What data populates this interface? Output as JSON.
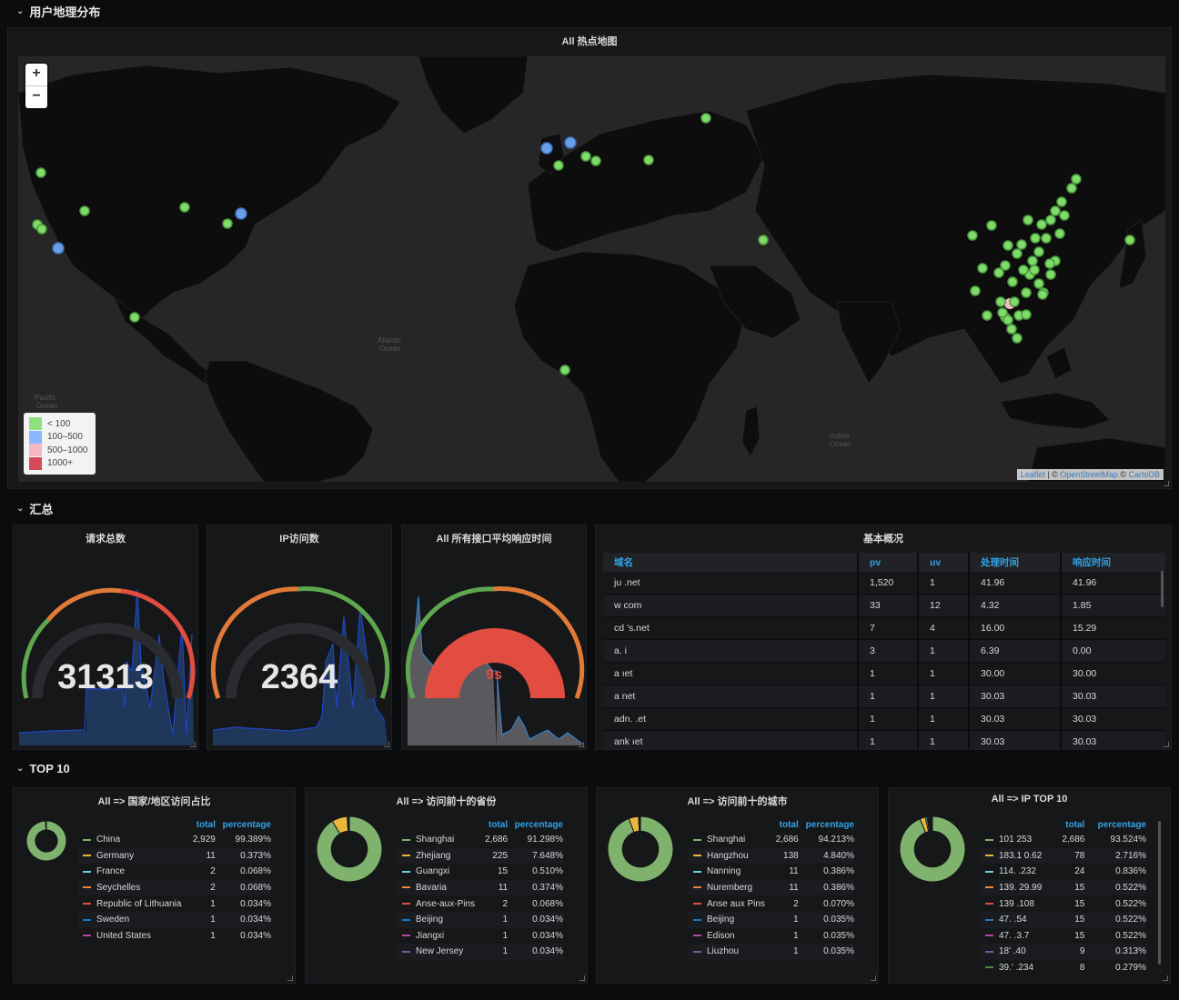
{
  "rows": {
    "geo": "用户地理分布",
    "summary": "汇总",
    "top10": "TOP 10"
  },
  "map": {
    "title": "All 热点地图",
    "zoom_in": "+",
    "zoom_out": "−",
    "legend": [
      {
        "label": "< 100",
        "color": "#8ee27e"
      },
      {
        "label": "100–500",
        "color": "#8ab8ff"
      },
      {
        "label": "500–1000",
        "color": "#f6b7c4"
      },
      {
        "label": "1000+",
        "color": "#d44a5a"
      }
    ],
    "attribution_leaflet": "Leaflet",
    "attribution_sep": " | © ",
    "attribution_osm": "OpenStreetMap",
    "attribution_sep2": " © ",
    "attribution_carto": "CartoDB",
    "labels": {
      "atlantic": "Atlantic",
      "ocean": "Ocean",
      "pacific": "Pacific",
      "indian": "Indian"
    }
  },
  "stats": {
    "requests": {
      "title": "请求总数",
      "value": "31313"
    },
    "ips": {
      "title": "IP访问数",
      "value": "2364"
    },
    "latency": {
      "title": "All 所有接口平均响应时间",
      "value": "9s"
    }
  },
  "basic": {
    "title": "基本概况",
    "headers": [
      "域名",
      "pv",
      "uv",
      "处理时间",
      "响应时间"
    ],
    "rows": [
      [
        "ju                         .net",
        "1,520",
        "1",
        "41.96",
        "41.96"
      ],
      [
        "w                         com",
        "33",
        "12",
        "4.32",
        "1.85"
      ],
      [
        "cd              's.net",
        "7",
        "4",
        "16.00",
        "15.29"
      ],
      [
        "a.                  i",
        "3",
        "1",
        "6.39",
        "0.00"
      ],
      [
        "a                    ıet",
        "1",
        "1",
        "30.00",
        "30.00"
      ],
      [
        "a                           net",
        "1",
        "1",
        "30.03",
        "30.03"
      ],
      [
        "adn.                  .et",
        "1",
        "1",
        "30.03",
        "30.03"
      ],
      [
        "ank                   ıet",
        "1",
        "1",
        "30.03",
        "30.03"
      ]
    ]
  },
  "pies": [
    {
      "title": "All => 国家/地区访问占比",
      "headers": [
        "total",
        "percentage"
      ],
      "items": [
        {
          "name": "China",
          "total": "2,929",
          "pct": "99.389%",
          "color": "#7eb26d"
        },
        {
          "name": "Germany",
          "total": "11",
          "pct": "0.373%",
          "color": "#eab839"
        },
        {
          "name": "France",
          "total": "2",
          "pct": "0.068%",
          "color": "#6ed0e0"
        },
        {
          "name": "Seychelles",
          "total": "2",
          "pct": "0.068%",
          "color": "#ef843c"
        },
        {
          "name": "Republic of Lithuania",
          "total": "1",
          "pct": "0.034%",
          "color": "#e24d42"
        },
        {
          "name": "Sweden",
          "total": "1",
          "pct": "0.034%",
          "color": "#1f78c1"
        },
        {
          "name": "United States",
          "total": "1",
          "pct": "0.034%",
          "color": "#ba43a9"
        }
      ]
    },
    {
      "title": "All => 访问前十的省份",
      "headers": [
        "total",
        "percentage"
      ],
      "items": [
        {
          "name": "Shanghai",
          "total": "2,686",
          "pct": "91.298%",
          "color": "#7eb26d"
        },
        {
          "name": "Zhejiang",
          "total": "225",
          "pct": "7.648%",
          "color": "#eab839"
        },
        {
          "name": "Guangxi",
          "total": "15",
          "pct": "0.510%",
          "color": "#6ed0e0"
        },
        {
          "name": "Bavaria",
          "total": "11",
          "pct": "0.374%",
          "color": "#ef843c"
        },
        {
          "name": "Anse-aux-Pins",
          "total": "2",
          "pct": "0.068%",
          "color": "#e24d42"
        },
        {
          "name": "Beijing",
          "total": "1",
          "pct": "0.034%",
          "color": "#1f78c1"
        },
        {
          "name": "Jiangxi",
          "total": "1",
          "pct": "0.034%",
          "color": "#ba43a9"
        },
        {
          "name": "New Jersey",
          "total": "1",
          "pct": "0.034%",
          "color": "#705da0"
        }
      ]
    },
    {
      "title": "All => 访问前十的城市",
      "headers": [
        "total",
        "percentage"
      ],
      "items": [
        {
          "name": "Shanghai",
          "total": "2,686",
          "pct": "94.213%",
          "color": "#7eb26d"
        },
        {
          "name": "Hangzhou",
          "total": "138",
          "pct": "4.840%",
          "color": "#eab839"
        },
        {
          "name": "Nanning",
          "total": "11",
          "pct": "0.386%",
          "color": "#6ed0e0"
        },
        {
          "name": "Nuremberg",
          "total": "11",
          "pct": "0.386%",
          "color": "#ef843c"
        },
        {
          "name": "Anse aux Pins",
          "total": "2",
          "pct": "0.070%",
          "color": "#e24d42"
        },
        {
          "name": "Beijing",
          "total": "1",
          "pct": "0.035%",
          "color": "#1f78c1"
        },
        {
          "name": "Edison",
          "total": "1",
          "pct": "0.035%",
          "color": "#ba43a9"
        },
        {
          "name": "Liuzhou",
          "total": "1",
          "pct": "0.035%",
          "color": "#705da0"
        }
      ]
    },
    {
      "title": "All => IP TOP 10",
      "headers": [
        "total",
        "percentage"
      ],
      "items": [
        {
          "name": "101            253",
          "total": "2,686",
          "pct": "93.524%",
          "color": "#7eb26d"
        },
        {
          "name": "183.1      0.62",
          "total": "78",
          "pct": "2.716%",
          "color": "#eab839"
        },
        {
          "name": "114.         .232",
          "total": "24",
          "pct": "0.836%",
          "color": "#6ed0e0"
        },
        {
          "name": "139.       29.99",
          "total": "15",
          "pct": "0.522%",
          "color": "#ef843c"
        },
        {
          "name": "139           .108",
          "total": "15",
          "pct": "0.522%",
          "color": "#e24d42"
        },
        {
          "name": "47.            .54",
          "total": "15",
          "pct": "0.522%",
          "color": "#1f78c1"
        },
        {
          "name": "47.         .3.7",
          "total": "15",
          "pct": "0.522%",
          "color": "#ba43a9"
        },
        {
          "name": "18'           .40",
          "total": "9",
          "pct": "0.313%",
          "color": "#705da0"
        },
        {
          "name": "39.'         .234",
          "total": "8",
          "pct": "0.279%",
          "color": "#508642"
        }
      ]
    }
  ]
}
